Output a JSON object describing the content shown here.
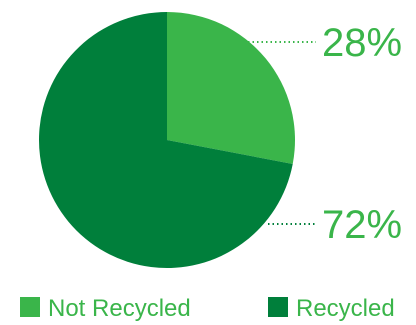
{
  "chart_data": {
    "type": "pie",
    "categories": [
      "Not Recycled",
      "Recycled"
    ],
    "values": [
      28,
      72
    ],
    "value_labels": [
      "28%",
      "72%"
    ],
    "colors": [
      "#3ab54a",
      "#007f3b"
    ],
    "label_color": "#3ab54a",
    "legend_text_color": "#3ab54a",
    "legend_position": "bottom",
    "start_angle_deg": 0,
    "direction": "clockwise"
  }
}
